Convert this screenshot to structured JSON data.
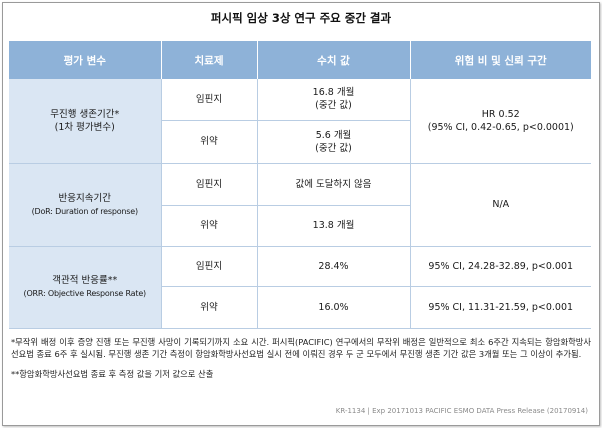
{
  "title": "퍼시픽 임상 3상 연구 주요 중간 결과",
  "table": {
    "headers": [
      "평가 변수",
      "치료제",
      "수치 값",
      "위험 비 및 신뢰 구간"
    ],
    "rows": [
      {
        "endpoint_line1": "무진행 생존기간*",
        "endpoint_line2": "(1차 평가변수)",
        "hr_line1": "HR 0.52",
        "hr_line2": "(95% CI, 0.42-0.65, p<0.0001)",
        "arms": [
          {
            "arm": "임핀지",
            "value_line1": "16.8 개월",
            "value_line2": "(중간 값)"
          },
          {
            "arm": "위약",
            "value_line1": "5.6 개월",
            "value_line2": "(중간 값)"
          }
        ]
      },
      {
        "endpoint_line1": "반응지속기간",
        "endpoint_line2": "(DoR: Duration of response)",
        "hr_line1": "N/A",
        "arms": [
          {
            "arm": "임핀지",
            "value_line1": "값에 도달하지 않음"
          },
          {
            "arm": "위약",
            "value_line1": "13.8 개월"
          }
        ]
      },
      {
        "endpoint_line1": "객관적 반응률**",
        "endpoint_line2": "(ORR: Objective Response Rate)",
        "arms": [
          {
            "arm": "임핀지",
            "value_line1": "28.4%",
            "ci": "95% CI, 24.28-32.89, p<0.001"
          },
          {
            "arm": "위약",
            "value_line1": "16.0%",
            "ci": "95% CI, 11.31-21.59, p<0.001"
          }
        ]
      }
    ]
  },
  "notes": {
    "note1": "*무작위 배정 이후 증양 진행 또는 무진행 사망이 기록되기까지 소요 시간. 퍼시픽(PACIFIC) 연구에서의 무작위 배정은 일반적으로 최소 6주간 지속되는 항암화학방사선요법 종료 6주 후 실시됨. 무진행 생존 기간 측정이 항암화학방사선요법 실시 전에 이뤄진 경우 두 군 모두에서 무진행 생존 기간 값은 3개월 또는 그 이상이 추가됨.",
    "note2": "**항암화학방사선요법 종료 후 측정 값을 기저 값으로 산출"
  },
  "footer": "KR-1134 | Exp 20171013 PACIFIC ESMO DATA Press Release (20170914)"
}
